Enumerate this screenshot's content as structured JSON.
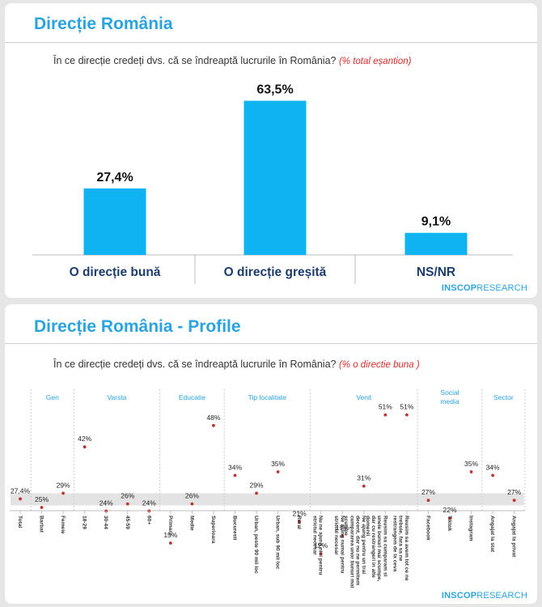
{
  "panel1": {
    "title": "Direcție România",
    "question": "În ce direcție credeți dvs. că se îndreaptă lucrurile în România?",
    "note": "(% total eșantion)",
    "logo_main": "INSCOP",
    "logo_sub": "RESEARCH"
  },
  "panel2": {
    "title": "Direcție România - Profile",
    "question": "În ce direcție credeți dvs. că se îndreaptă lucrurile în România?",
    "note": "(% o directie buna )",
    "logo_main": "INSCOP",
    "logo_sub": "RESEARCH"
  },
  "colors": {
    "accent": "#2aa3e0",
    "bar": "#0fb3f2",
    "point": "#c0312f",
    "note": "#d62b2b"
  },
  "chart_data": [
    {
      "type": "bar",
      "categories": [
        "O direcție bună",
        "O direcție greșită",
        "NS/NR"
      ],
      "values": [
        27.4,
        63.5,
        9.1
      ],
      "value_labels": [
        "27,4%",
        "63,5%",
        "9,1%"
      ],
      "ylim": [
        0,
        70
      ]
    },
    {
      "type": "scatter",
      "groups": [
        {
          "name": "Gen",
          "start": 1,
          "end": 2
        },
        {
          "name": "Varsta",
          "start": 3,
          "end": 6
        },
        {
          "name": "Educatie",
          "start": 7,
          "end": 9
        },
        {
          "name": "Tip localitate",
          "start": 10,
          "end": 13
        },
        {
          "name": "Venit",
          "start": 14,
          "end": 18
        },
        {
          "name": "Social media",
          "start": 19,
          "end": 21
        },
        {
          "name": "Sector",
          "start": 22,
          "end": 23
        }
      ],
      "categories": [
        "Total",
        "Barbat",
        "Femeie",
        "18-29",
        "30-44",
        "45-59",
        "60+",
        "Primara",
        "Medie",
        "Superioara",
        "Bucuresti",
        "Urban, peste 90 mii loc",
        "Urban, sub 90 mii loc",
        "Rural",
        "Nu ne ajung nici pentru strictul necesar",
        "Ne ajung numai pentru strictul necesar",
        "Ne ajung pentru un trai decent, dar nu ne permitem cumpararea unor bunuri mai scumpe",
        "Reusim sa cumparam si unele bunuri mai scumpe, dar cu restrangeri in alte domenii",
        "Reusim sa avem tot ce ne trebuie, fara sa ne restrangem de la ceva",
        "Facebook",
        "Tiktok",
        "Instagram",
        "Angajat la stat",
        "Angajat la privat"
      ],
      "values": [
        27.4,
        25,
        29,
        42,
        24,
        26,
        24,
        15,
        26,
        48,
        34,
        29,
        35,
        21,
        12,
        17,
        31,
        51,
        51,
        27,
        22,
        35,
        34,
        27
      ],
      "value_labels": [
        "27,4%",
        "25%",
        "29%",
        "42%",
        "24%",
        "26%",
        "24%",
        "15%",
        "26%",
        "48%",
        "34%",
        "29%",
        "35%",
        "21%",
        "12%",
        "17%",
        "31%",
        "51%",
        "51%",
        "27%",
        "22%",
        "35%",
        "34%",
        "27%"
      ],
      "ylim": [
        0,
        60
      ]
    }
  ]
}
